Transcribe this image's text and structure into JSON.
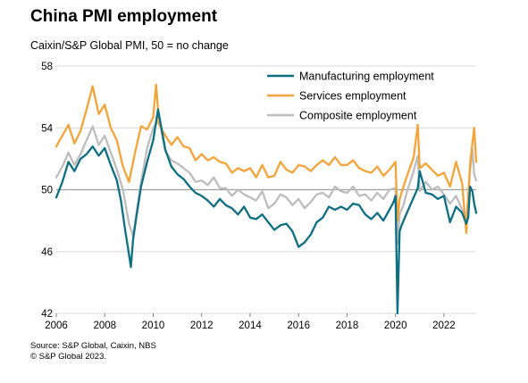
{
  "title": "China PMI employment",
  "subtitle": "Caixin/S&P Global  PMI, 50 = no change",
  "source_lines": [
    "Source: S&P Global, Caixin, NBS",
    "© S&P Global 2023."
  ],
  "colors": {
    "manufacturing": "#0E6E82",
    "services": "#F2A43A",
    "composite": "#BDBDBD",
    "reference_line": "#9E9E9E",
    "grid": "#D9D9D9"
  },
  "chart_data": {
    "type": "line",
    "title": "China PMI employment",
    "subtitle": "Caixin/S&P Global  PMI, 50 = no change",
    "xlabel": "",
    "ylabel": "",
    "xlim": [
      2006.0,
      2023.33
    ],
    "ylim": [
      42,
      58
    ],
    "yticks": [
      42,
      46,
      50,
      54,
      58
    ],
    "xticks": [
      2006,
      2008,
      2010,
      2012,
      2014,
      2016,
      2018,
      2020,
      2022
    ],
    "xtick_labels": [
      "2006",
      "2008",
      "2010",
      "2012",
      "2014",
      "2016",
      "2018",
      "2020",
      "2022"
    ],
    "reference_line": 50,
    "grid": "horizontal",
    "legend_position": "top-right",
    "series": [
      {
        "name": "Manufacturing employment",
        "color": "#0E6E82",
        "x": [
          2006.0,
          2006.25,
          2006.5,
          2006.75,
          2007.0,
          2007.25,
          2007.5,
          2007.75,
          2008.0,
          2008.25,
          2008.5,
          2008.67,
          2008.83,
          2009.0,
          2009.08,
          2009.17,
          2009.33,
          2009.5,
          2009.75,
          2010.0,
          2010.2,
          2010.5,
          2010.75,
          2011.0,
          2011.25,
          2011.5,
          2011.75,
          2012.0,
          2012.25,
          2012.5,
          2012.75,
          2013.0,
          2013.25,
          2013.5,
          2013.75,
          2014.0,
          2014.25,
          2014.5,
          2014.75,
          2015.0,
          2015.25,
          2015.5,
          2015.75,
          2016.0,
          2016.25,
          2016.5,
          2016.75,
          2017.0,
          2017.25,
          2017.5,
          2017.75,
          2018.0,
          2018.25,
          2018.5,
          2018.75,
          2019.0,
          2019.25,
          2019.5,
          2019.75,
          2019.92,
          2020.0,
          2020.08,
          2020.17,
          2020.25,
          2020.5,
          2020.75,
          2020.92,
          2021.0,
          2021.25,
          2021.5,
          2021.75,
          2022.0,
          2022.25,
          2022.5,
          2022.75,
          2022.92,
          2023.0,
          2023.08,
          2023.17,
          2023.25,
          2023.33
        ],
        "values": [
          49.5,
          50.5,
          51.8,
          51.2,
          52.0,
          52.3,
          52.8,
          52.2,
          52.7,
          51.6,
          50.6,
          49.3,
          47.5,
          45.8,
          45.0,
          46.8,
          48.5,
          50.2,
          51.8,
          53.2,
          55.2,
          52.6,
          51.5,
          51.0,
          50.7,
          50.2,
          49.8,
          49.6,
          49.3,
          48.9,
          49.4,
          49.0,
          48.8,
          48.4,
          48.9,
          48.2,
          48.1,
          48.4,
          47.9,
          47.4,
          47.7,
          47.8,
          47.3,
          46.3,
          46.6,
          47.1,
          47.9,
          48.2,
          48.9,
          48.7,
          48.9,
          48.7,
          49.1,
          49.0,
          48.4,
          48.1,
          48.5,
          48.0,
          48.7,
          49.2,
          49.6,
          42.0,
          47.3,
          47.7,
          48.6,
          49.5,
          50.1,
          51.2,
          49.8,
          49.7,
          49.4,
          49.6,
          47.9,
          48.9,
          48.5,
          47.8,
          48.2,
          50.2,
          49.9,
          49.1,
          48.5
        ]
      },
      {
        "name": "Services employment",
        "color": "#F2A43A",
        "x": [
          2006.0,
          2006.25,
          2006.5,
          2006.75,
          2007.0,
          2007.25,
          2007.5,
          2007.75,
          2008.0,
          2008.25,
          2008.5,
          2008.75,
          2009.0,
          2009.25,
          2009.5,
          2009.75,
          2010.0,
          2010.12,
          2010.25,
          2010.5,
          2010.75,
          2011.0,
          2011.25,
          2011.5,
          2011.75,
          2012.0,
          2012.25,
          2012.5,
          2012.75,
          2013.0,
          2013.25,
          2013.5,
          2013.75,
          2014.0,
          2014.25,
          2014.5,
          2014.75,
          2015.0,
          2015.25,
          2015.5,
          2015.75,
          2016.0,
          2016.25,
          2016.5,
          2016.75,
          2017.0,
          2017.25,
          2017.5,
          2017.75,
          2018.0,
          2018.25,
          2018.5,
          2018.75,
          2019.0,
          2019.25,
          2019.5,
          2019.75,
          2020.0,
          2020.08,
          2020.17,
          2020.33,
          2020.5,
          2020.75,
          2020.92,
          2021.0,
          2021.25,
          2021.5,
          2021.75,
          2022.0,
          2022.25,
          2022.5,
          2022.75,
          2022.92,
          2023.0,
          2023.08,
          2023.17,
          2023.25,
          2023.33
        ],
        "values": [
          52.8,
          53.5,
          54.2,
          53.0,
          53.8,
          55.2,
          56.7,
          54.9,
          55.5,
          54.0,
          53.2,
          51.5,
          50.5,
          52.4,
          54.1,
          53.9,
          54.7,
          56.8,
          54.2,
          53.5,
          52.9,
          53.4,
          52.8,
          52.7,
          51.9,
          52.3,
          51.9,
          52.1,
          51.8,
          51.7,
          51.1,
          51.4,
          51.2,
          51.4,
          50.8,
          51.6,
          50.8,
          50.9,
          51.8,
          51.3,
          51.1,
          51.6,
          51.5,
          51.2,
          51.6,
          51.9,
          51.6,
          52.1,
          51.6,
          51.6,
          51.9,
          51.4,
          51.2,
          51.1,
          51.5,
          50.9,
          51.3,
          51.8,
          48.0,
          49.4,
          50.2,
          51.0,
          52.1,
          54.2,
          51.4,
          51.7,
          51.3,
          50.9,
          51.1,
          50.2,
          51.8,
          50.4,
          47.2,
          49.6,
          51.7,
          53.0,
          54.0,
          51.8
        ]
      },
      {
        "name": "Composite employment",
        "color": "#BDBDBD",
        "x": [
          2006.0,
          2006.25,
          2006.5,
          2006.75,
          2007.0,
          2007.25,
          2007.5,
          2007.75,
          2008.0,
          2008.25,
          2008.5,
          2008.75,
          2009.0,
          2009.17,
          2009.5,
          2009.75,
          2010.0,
          2010.25,
          2010.5,
          2010.75,
          2011.0,
          2011.25,
          2011.5,
          2011.75,
          2012.0,
          2012.25,
          2012.5,
          2012.75,
          2013.0,
          2013.25,
          2013.5,
          2013.75,
          2014.0,
          2014.25,
          2014.5,
          2014.75,
          2015.0,
          2015.25,
          2015.5,
          2015.75,
          2016.0,
          2016.25,
          2016.5,
          2016.75,
          2017.0,
          2017.25,
          2017.5,
          2017.75,
          2018.0,
          2018.25,
          2018.5,
          2018.75,
          2019.0,
          2019.25,
          2019.5,
          2019.75,
          2020.0,
          2020.08,
          2020.17,
          2020.33,
          2020.5,
          2020.75,
          2020.92,
          2021.0,
          2021.25,
          2021.5,
          2021.75,
          2022.0,
          2022.25,
          2022.5,
          2022.75,
          2022.92,
          2023.0,
          2023.08,
          2023.17,
          2023.25,
          2023.33
        ],
        "values": [
          50.8,
          51.5,
          52.4,
          51.6,
          52.3,
          53.2,
          54.1,
          52.9,
          53.5,
          52.4,
          51.3,
          50.0,
          47.8,
          47.0,
          50.5,
          52.7,
          54.0,
          54.5,
          52.5,
          51.9,
          51.7,
          51.4,
          51.1,
          50.5,
          50.6,
          50.3,
          50.8,
          50.1,
          50.1,
          49.6,
          50.0,
          49.7,
          49.5,
          49.3,
          49.9,
          48.8,
          49.1,
          49.7,
          49.5,
          49.0,
          49.4,
          48.8,
          49.2,
          49.7,
          49.8,
          49.5,
          50.2,
          49.9,
          49.8,
          50.2,
          49.6,
          49.7,
          49.3,
          49.8,
          49.4,
          50.0,
          50.1,
          46.5,
          48.4,
          49.0,
          50.0,
          51.2,
          52.2,
          49.9,
          50.5,
          50.0,
          50.2,
          49.7,
          49.1,
          49.6,
          48.7,
          48.2,
          49.4,
          51.3,
          52.6,
          51.0,
          50.6
        ]
      }
    ]
  }
}
